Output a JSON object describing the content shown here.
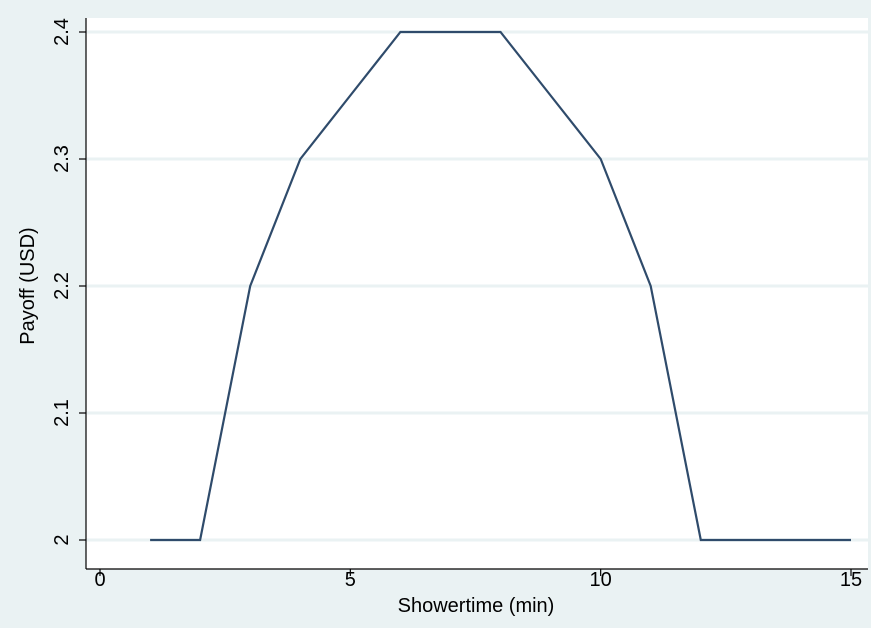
{
  "chart_data": {
    "type": "line",
    "title": "",
    "xlabel": "Showertime (min)",
    "ylabel": "Payoff (USD)",
    "xlim": [
      0,
      15
    ],
    "ylim": [
      2,
      2.4
    ],
    "x_ticks": [
      "0",
      "5",
      "10",
      "15"
    ],
    "y_ticks": [
      "2",
      "2.1",
      "2.2",
      "2.3",
      "2.4"
    ],
    "grid": "horizontal",
    "legend": "none",
    "series": [
      {
        "color": "#2f4b6b",
        "x": [
          1,
          2,
          3,
          4,
          5,
          6,
          7,
          8,
          9,
          10,
          11,
          12,
          13,
          14,
          15
        ],
        "y": [
          2,
          2,
          2.2,
          2.3,
          2.35,
          2.4,
          2.4,
          2.4,
          2.35,
          2.3,
          2.2,
          2,
          2,
          2,
          2
        ]
      }
    ],
    "colors": {
      "background": "#eaf2f3",
      "plot_area": "#ffffff",
      "grid": "#eaf2f3",
      "axis": "#000000"
    }
  }
}
